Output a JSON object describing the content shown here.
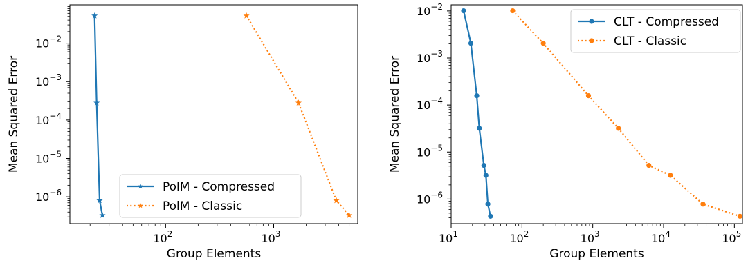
{
  "chart_data": [
    {
      "type": "line",
      "xlabel": "Group Elements",
      "ylabel": "Mean Squared Error",
      "x_scale": "log",
      "y_scale": "log",
      "xlim": [
        13,
        6000
      ],
      "ylim": [
        2e-07,
        0.1
      ],
      "x_ticks": [
        {
          "value": 100,
          "base": "10",
          "exp": "2"
        },
        {
          "value": 1000,
          "base": "10",
          "exp": "3"
        }
      ],
      "y_ticks": [
        {
          "value": 1e-06,
          "base": "10",
          "exp": "−6"
        },
        {
          "value": 1e-05,
          "base": "10",
          "exp": "−5"
        },
        {
          "value": 0.0001,
          "base": "10",
          "exp": "−4"
        },
        {
          "value": 0.001,
          "base": "10",
          "exp": "−3"
        },
        {
          "value": 0.01,
          "base": "10",
          "exp": "−2"
        }
      ],
      "legend_position": "lower-right",
      "grid": false,
      "series": [
        {
          "name": "PolM - Compressed",
          "color": "#1f77b4",
          "style": "solid",
          "marker": "star",
          "x": [
            22,
            23,
            24.5,
            26
          ],
          "y": [
            0.052,
            0.00028,
            8e-07,
            3.3e-07
          ]
        },
        {
          "name": "PolM - Classic",
          "color": "#ff7f0e",
          "style": "dotted",
          "marker": "star",
          "x": [
            560,
            1700,
            3800,
            5000
          ],
          "y": [
            0.052,
            0.00028,
            8e-07,
            3.3e-07
          ]
        }
      ]
    },
    {
      "type": "line",
      "xlabel": "Group Elements",
      "ylabel": "Mean Squared Error",
      "x_scale": "log",
      "y_scale": "log",
      "xlim": [
        10,
        130000
      ],
      "ylim": [
        3e-07,
        0.0135
      ],
      "x_ticks": [
        {
          "value": 10,
          "base": "10",
          "exp": "1"
        },
        {
          "value": 100,
          "base": "10",
          "exp": "2"
        },
        {
          "value": 1000,
          "base": "10",
          "exp": "3"
        },
        {
          "value": 10000,
          "base": "10",
          "exp": "4"
        },
        {
          "value": 100000,
          "base": "10",
          "exp": "5"
        }
      ],
      "y_ticks": [
        {
          "value": 1e-06,
          "base": "10",
          "exp": "−6"
        },
        {
          "value": 1e-05,
          "base": "10",
          "exp": "−5"
        },
        {
          "value": 0.0001,
          "base": "10",
          "exp": "−4"
        },
        {
          "value": 0.001,
          "base": "10",
          "exp": "−3"
        },
        {
          "value": 0.01,
          "base": "10",
          "exp": "−2"
        }
      ],
      "legend_position": "upper-right",
      "grid": false,
      "series": [
        {
          "name": "CLT - Compressed",
          "color": "#1f77b4",
          "style": "solid",
          "marker": "circle",
          "x": [
            15,
            19,
            23,
            25,
            29,
            31,
            33,
            36
          ],
          "y": [
            0.0101,
            0.00205,
            0.000158,
            3.2e-05,
            5.2e-06,
            3.2e-06,
            7.8e-07,
            4.3e-07
          ]
        },
        {
          "name": "CLT - Classic",
          "color": "#ff7f0e",
          "style": "dotted",
          "marker": "circle",
          "x": [
            74,
            200,
            870,
            2300,
            6200,
            12500,
            36000,
            120000
          ],
          "y": [
            0.0101,
            0.00205,
            0.000158,
            3.2e-05,
            5.2e-06,
            3.2e-06,
            7.8e-07,
            4.3e-07
          ]
        }
      ]
    }
  ]
}
